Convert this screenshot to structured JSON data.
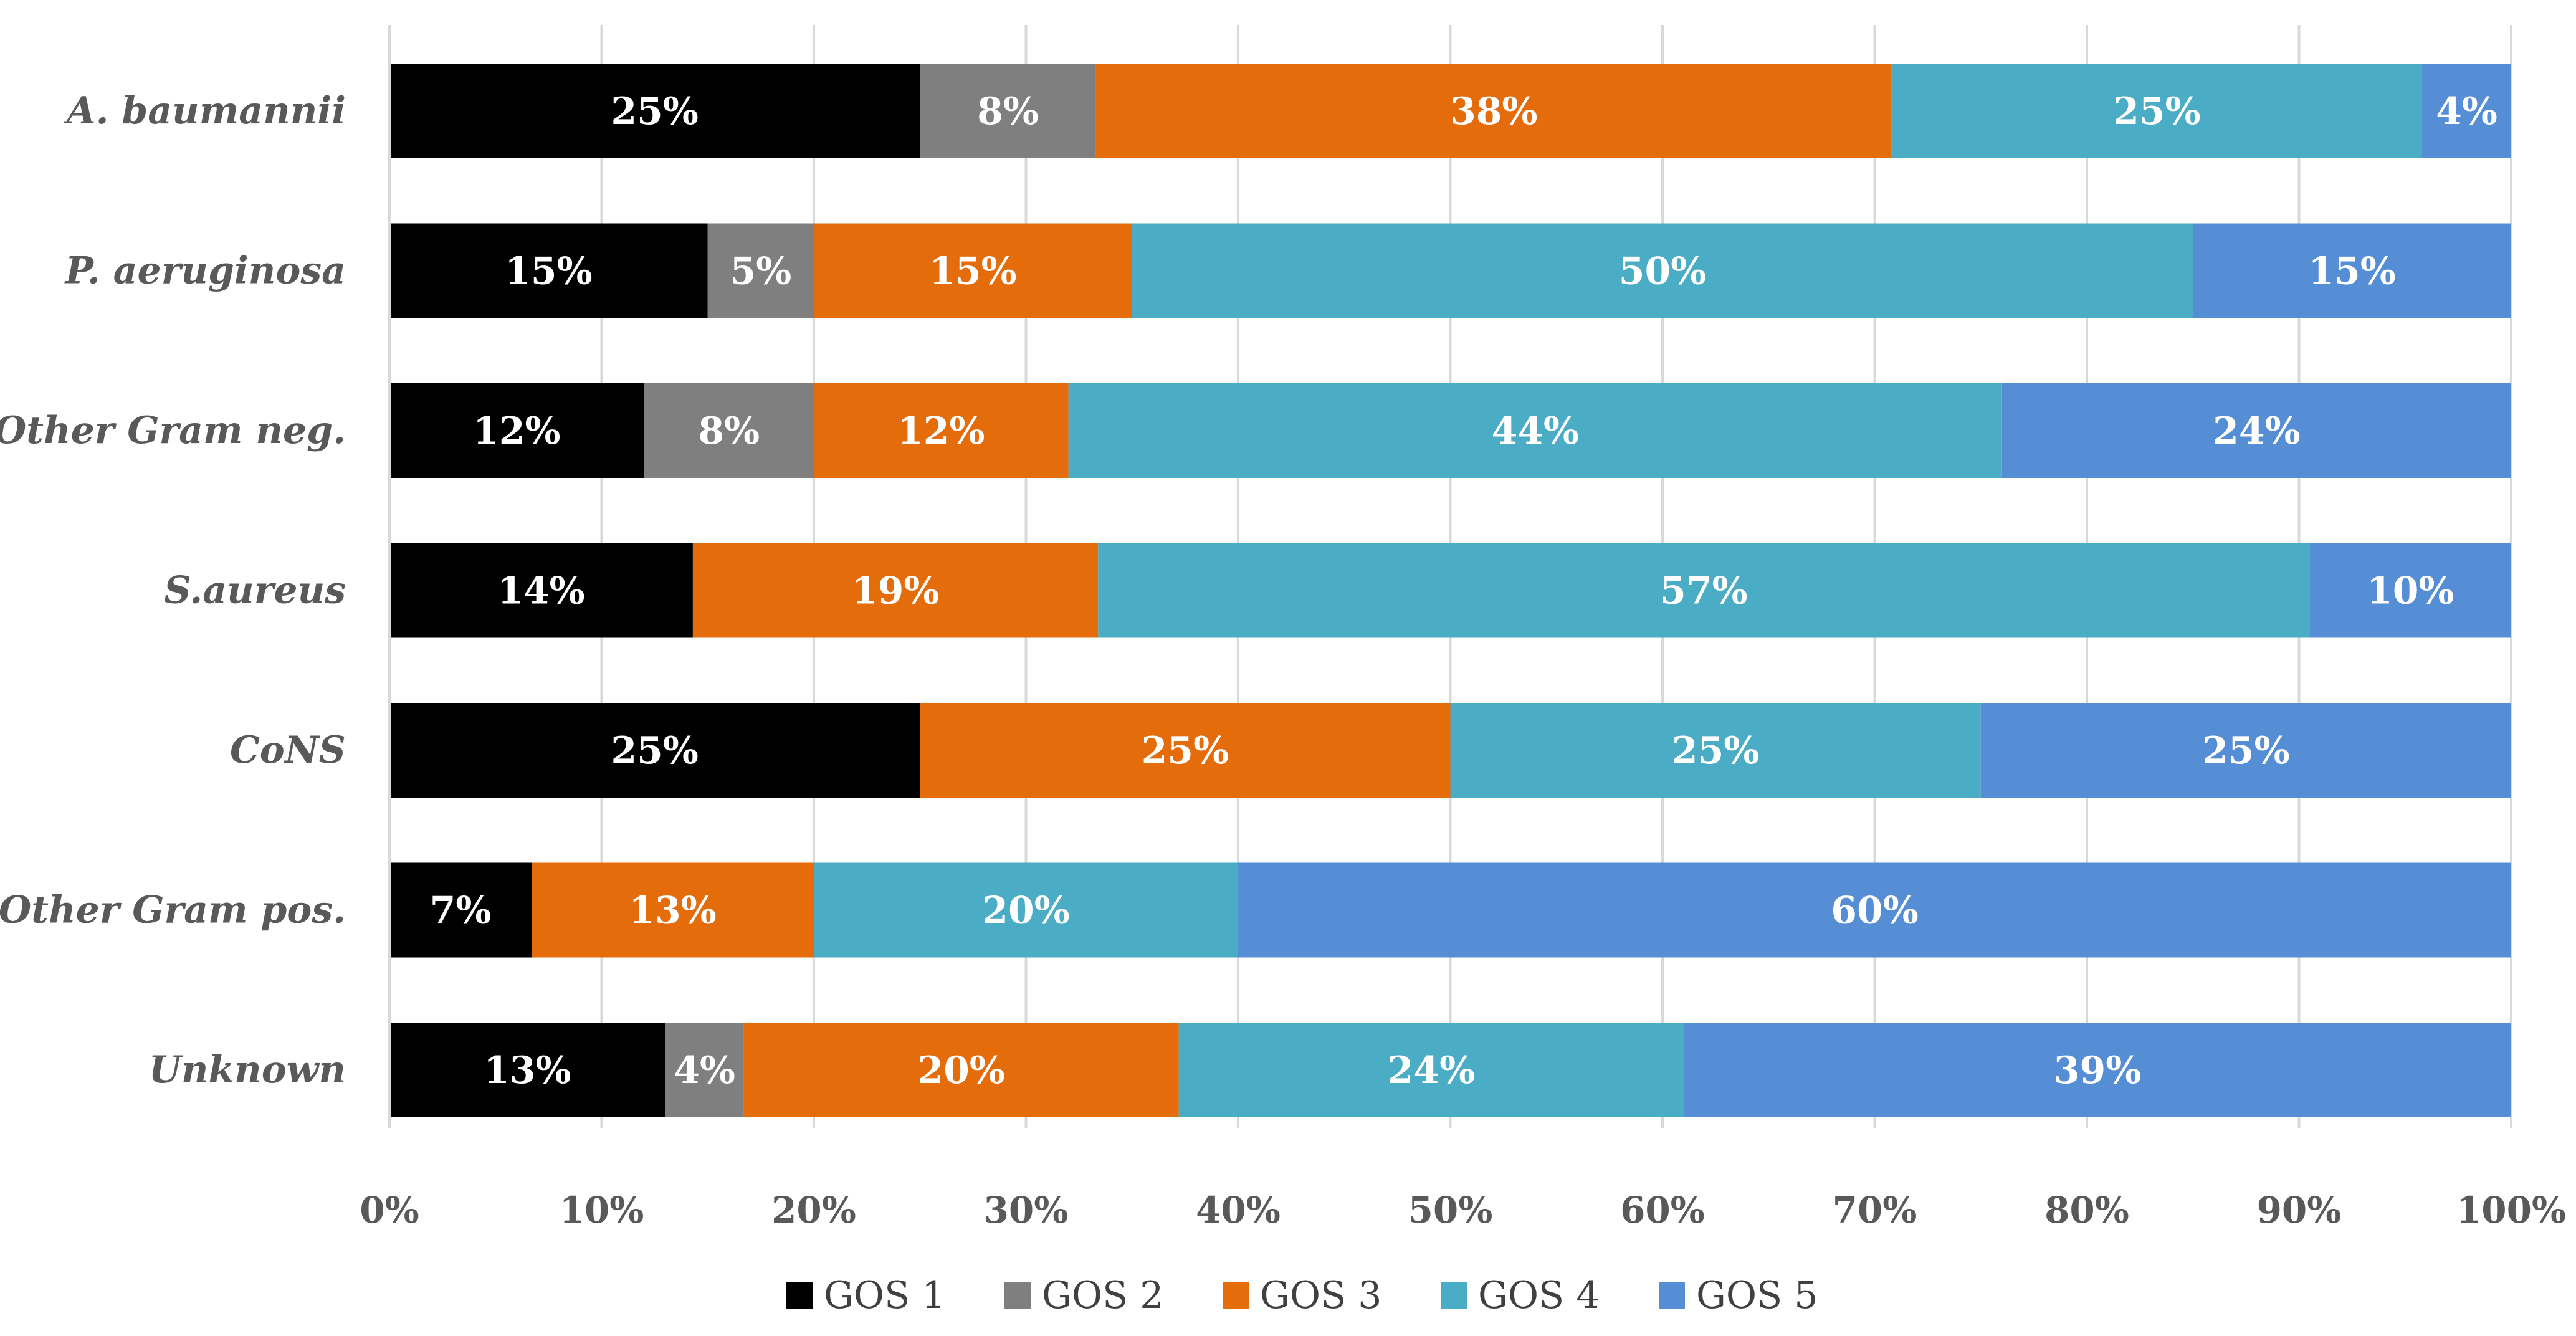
{
  "chart_data": {
    "type": "bar",
    "orientation": "horizontal",
    "stacked": "percent",
    "title": "",
    "xlabel": "",
    "ylabel": "",
    "xlim": [
      0,
      100
    ],
    "x_ticks": [
      "0%",
      "10%",
      "20%",
      "30%",
      "40%",
      "50%",
      "60%",
      "70%",
      "80%",
      "90%",
      "100%"
    ],
    "grid": "vertical",
    "legend_position": "bottom",
    "categories": [
      "A. baumannii",
      "P. aeruginosa",
      "Other Gram neg.",
      "S.aureus",
      "CoNS",
      "Other Gram pos.",
      "Unknown"
    ],
    "series": [
      {
        "name": "GOS 1",
        "color": "#000000",
        "values": [
          25,
          15,
          12,
          14.3,
          25,
          6.7,
          13
        ],
        "labels": [
          "25%",
          "15%",
          "12%",
          "14%",
          "25%",
          "7%",
          "13%"
        ]
      },
      {
        "name": "GOS 2",
        "color": "#7f7f7f",
        "values": [
          8.3,
          5,
          8,
          0,
          0,
          0,
          3.7
        ],
        "labels": [
          "8%",
          "5%",
          "8%",
          "",
          "",
          "",
          "4%"
        ]
      },
      {
        "name": "GOS 3",
        "color": "#e46c0a",
        "values": [
          37.5,
          15,
          12,
          19.1,
          25,
          13.3,
          20.5
        ],
        "labels": [
          "38%",
          "15%",
          "12%",
          "19%",
          "25%",
          "13%",
          "20%"
        ]
      },
      {
        "name": "GOS 4",
        "color": "#4bacc6",
        "values": [
          25,
          50,
          44,
          57.1,
          25,
          20,
          23.8
        ],
        "labels": [
          "25%",
          "50%",
          "44%",
          "57%",
          "25%",
          "20%",
          "24%"
        ]
      },
      {
        "name": "GOS 5",
        "color": "#558ed5",
        "values": [
          4.2,
          15,
          24,
          9.5,
          25,
          60,
          39
        ],
        "labels": [
          "4%",
          "15%",
          "24%",
          "10%",
          "25%",
          "60%",
          "39%"
        ]
      }
    ]
  }
}
